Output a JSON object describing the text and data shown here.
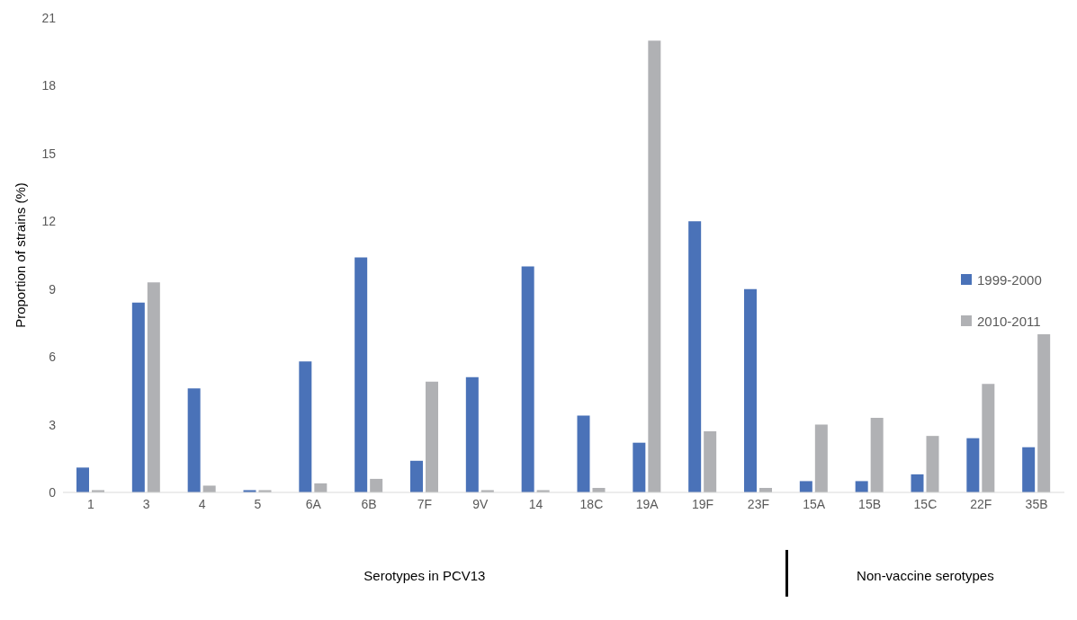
{
  "chart_data": {
    "type": "bar",
    "ylabel": "Proportion of strains (%)",
    "categories": [
      "1",
      "3",
      "4",
      "5",
      "6A",
      "6B",
      "7F",
      "9V",
      "14",
      "18C",
      "19A",
      "19F",
      "23F",
      "15A",
      "15B",
      "15C",
      "22F",
      "35B"
    ],
    "series": [
      {
        "name": "1999-2000",
        "color": "#4a72b8",
        "values": [
          1.1,
          8.4,
          4.6,
          0.1,
          5.8,
          10.4,
          1.4,
          5.1,
          10,
          3.4,
          2.2,
          12,
          9,
          0.5,
          0.5,
          0.8,
          2.4,
          2
        ]
      },
      {
        "name": "2010-2011",
        "color": "#b0b1b4",
        "values": [
          0.1,
          9.3,
          0.3,
          0.1,
          0.4,
          0.6,
          4.9,
          0.1,
          0.1,
          0.2,
          20,
          2.7,
          0.2,
          3,
          3.3,
          2.5,
          4.8,
          7
        ]
      }
    ],
    "ylim": [
      0,
      21
    ],
    "yticks": [
      0,
      3,
      6,
      9,
      12,
      15,
      18,
      21
    ],
    "grid": false,
    "legend": "right",
    "annotations": [
      "Serotypes in PCV13",
      "Non-vaccine serotypes"
    ]
  }
}
